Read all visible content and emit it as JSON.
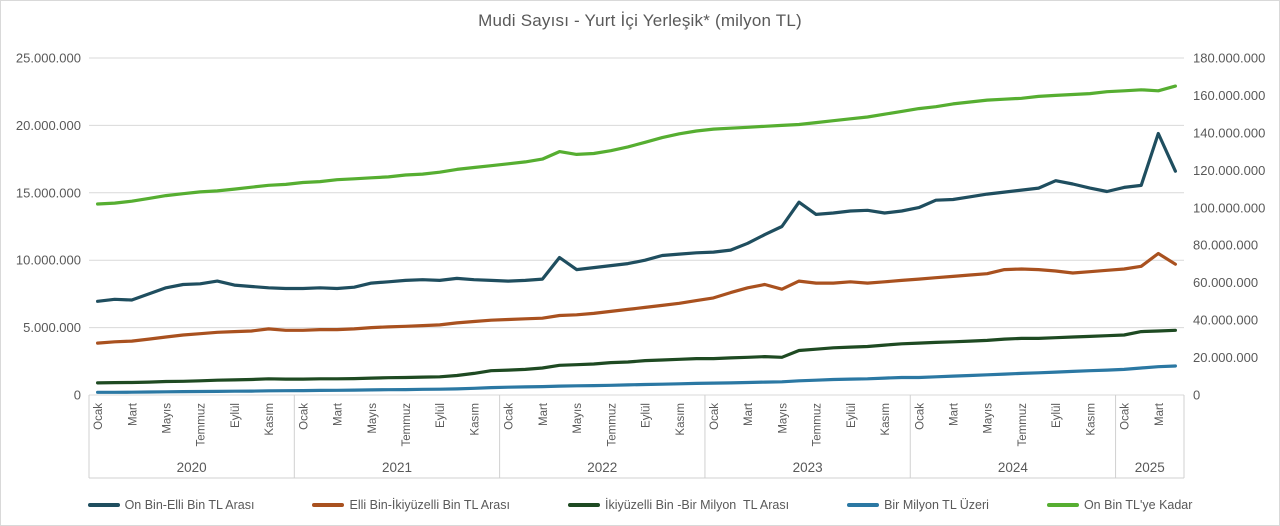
{
  "title": "Mudi Sayısı - Yurt İçi Yerleşik* (milyon TL)",
  "colors": {
    "text": "#595959",
    "gridline": "#d9d9d9",
    "band_line": "#d0d0d0",
    "background": "#ffffff"
  },
  "chart_data": {
    "type": "line",
    "title": "Mudi Sayısı - Yurt İçi Yerleşik* (milyon TL)",
    "grid": "horizontal",
    "legend_position": "bottom",
    "left_axis": {
      "min": 0,
      "max": 25000000,
      "step": 5000000,
      "tick_labels": [
        "0",
        "5.000.000",
        "10.000.000",
        "15.000.000",
        "20.000.000",
        "25.000.000"
      ]
    },
    "right_axis": {
      "min": 0,
      "max": 180000000,
      "step": 20000000,
      "tick_labels": [
        "0",
        "20.000.000",
        "40.000.000",
        "60.000.000",
        "80.000.000",
        "100.000.000",
        "120.000.000",
        "140.000.000",
        "160.000.000",
        "180.000.000"
      ]
    },
    "x_axis": {
      "unit": "month",
      "point_count": 64,
      "month_ticks": [
        [
          0,
          "Ocak"
        ],
        [
          2,
          "Mart"
        ],
        [
          4,
          "Mayıs"
        ],
        [
          6,
          "Temmuz"
        ],
        [
          8,
          "Eylül"
        ],
        [
          10,
          "Kasım"
        ],
        [
          12,
          "Ocak"
        ],
        [
          14,
          "Mart"
        ],
        [
          16,
          "Mayıs"
        ],
        [
          18,
          "Temmuz"
        ],
        [
          20,
          "Eylül"
        ],
        [
          22,
          "Kasım"
        ],
        [
          24,
          "Ocak"
        ],
        [
          26,
          "Mart"
        ],
        [
          28,
          "Mayıs"
        ],
        [
          30,
          "Temmuz"
        ],
        [
          32,
          "Eylül"
        ],
        [
          34,
          "Kasım"
        ],
        [
          36,
          "Ocak"
        ],
        [
          38,
          "Mart"
        ],
        [
          40,
          "Mayıs"
        ],
        [
          42,
          "Temmuz"
        ],
        [
          44,
          "Eylül"
        ],
        [
          46,
          "Kasım"
        ],
        [
          48,
          "Ocak"
        ],
        [
          50,
          "Mart"
        ],
        [
          52,
          "Mayıs"
        ],
        [
          54,
          "Temmuz"
        ],
        [
          56,
          "Eylül"
        ],
        [
          58,
          "Kasım"
        ],
        [
          60,
          "Ocak"
        ],
        [
          62,
          "Mart"
        ]
      ],
      "years": [
        [
          "2020",
          0,
          12
        ],
        [
          "2021",
          12,
          12
        ],
        [
          "2022",
          24,
          12
        ],
        [
          "2023",
          36,
          12
        ],
        [
          "2024",
          48,
          12
        ],
        [
          "2025",
          60,
          4
        ]
      ]
    },
    "series": [
      {
        "name": "On Bin-Elli Bin TL Arası",
        "color": "#1f4e5f",
        "axis": "left",
        "values": [
          6950000,
          7100000,
          7050000,
          7500000,
          7950000,
          8200000,
          8250000,
          8450000,
          8150000,
          8050000,
          7950000,
          7900000,
          7900000,
          7950000,
          7900000,
          8000000,
          8300000,
          8400000,
          8500000,
          8550000,
          8500000,
          8650000,
          8550000,
          8500000,
          8450000,
          8500000,
          8600000,
          10200000,
          9300000,
          9450000,
          9600000,
          9750000,
          10000000,
          10350000,
          10450000,
          10550000,
          10600000,
          10750000,
          11250000,
          11900000,
          12500000,
          14300000,
          13400000,
          13500000,
          13650000,
          13700000,
          13500000,
          13650000,
          13900000,
          14450000,
          14500000,
          14700000,
          14900000,
          15050000,
          15200000,
          15350000,
          15900000,
          15650000,
          15350000,
          15100000,
          15400000,
          15550000,
          19400000,
          16600000
        ]
      },
      {
        "name": "Elli Bin-İkiyüzelli Bin TL Arası",
        "color": "#a9511f",
        "axis": "left",
        "values": [
          3850000,
          3950000,
          4000000,
          4150000,
          4300000,
          4450000,
          4550000,
          4650000,
          4700000,
          4750000,
          4900000,
          4800000,
          4800000,
          4850000,
          4850000,
          4900000,
          5000000,
          5050000,
          5100000,
          5150000,
          5200000,
          5350000,
          5450000,
          5550000,
          5600000,
          5650000,
          5700000,
          5900000,
          5950000,
          6050000,
          6200000,
          6350000,
          6500000,
          6650000,
          6800000,
          7000000,
          7200000,
          7600000,
          7950000,
          8200000,
          7850000,
          8450000,
          8300000,
          8300000,
          8400000,
          8300000,
          8400000,
          8500000,
          8600000,
          8700000,
          8800000,
          8900000,
          9000000,
          9300000,
          9350000,
          9300000,
          9200000,
          9050000,
          9150000,
          9250000,
          9350000,
          9550000,
          10500000,
          9700000
        ]
      },
      {
        "name": "İkiyüzelli Bin -Bir Milyon  TL Arası",
        "color": "#1e4a22",
        "axis": "left",
        "values": [
          900000,
          920000,
          930000,
          960000,
          1000000,
          1020000,
          1050000,
          1100000,
          1120000,
          1150000,
          1200000,
          1180000,
          1180000,
          1200000,
          1200000,
          1220000,
          1250000,
          1280000,
          1300000,
          1330000,
          1350000,
          1450000,
          1600000,
          1800000,
          1850000,
          1900000,
          2000000,
          2200000,
          2250000,
          2300000,
          2400000,
          2450000,
          2550000,
          2600000,
          2650000,
          2700000,
          2700000,
          2750000,
          2800000,
          2850000,
          2800000,
          3300000,
          3400000,
          3500000,
          3550000,
          3600000,
          3700000,
          3800000,
          3850000,
          3900000,
          3950000,
          4000000,
          4050000,
          4150000,
          4200000,
          4200000,
          4250000,
          4300000,
          4350000,
          4400000,
          4450000,
          4700000,
          4750000,
          4800000
        ]
      },
      {
        "name": "Bir Milyon TL Üzeri",
        "color": "#2b78a3",
        "axis": "left",
        "values": [
          200000,
          200000,
          210000,
          220000,
          240000,
          250000,
          260000,
          270000,
          280000,
          290000,
          310000,
          320000,
          330000,
          340000,
          350000,
          360000,
          380000,
          390000,
          400000,
          420000,
          430000,
          450000,
          500000,
          550000,
          580000,
          600000,
          620000,
          660000,
          680000,
          700000,
          720000,
          750000,
          780000,
          800000,
          830000,
          860000,
          880000,
          900000,
          930000,
          960000,
          980000,
          1050000,
          1100000,
          1150000,
          1180000,
          1200000,
          1250000,
          1300000,
          1300000,
          1350000,
          1400000,
          1450000,
          1500000,
          1550000,
          1600000,
          1650000,
          1700000,
          1750000,
          1800000,
          1850000,
          1900000,
          2000000,
          2100000,
          2150000
        ]
      },
      {
        "name": "On Bin TL'ye Kadar",
        "color": "#56ae31",
        "axis": "right",
        "values": [
          102000000,
          102500000,
          103500000,
          105000000,
          106500000,
          107500000,
          108500000,
          109000000,
          110000000,
          111000000,
          112000000,
          112500000,
          113500000,
          114000000,
          115000000,
          115500000,
          116000000,
          116500000,
          117500000,
          118000000,
          119000000,
          120500000,
          121500000,
          122500000,
          123500000,
          124500000,
          126000000,
          130000000,
          128500000,
          129000000,
          130500000,
          132500000,
          135000000,
          137500000,
          139500000,
          141000000,
          142000000,
          142500000,
          143000000,
          143500000,
          144000000,
          144500000,
          145500000,
          146500000,
          147500000,
          148500000,
          150000000,
          151500000,
          153000000,
          154000000,
          155500000,
          156500000,
          157500000,
          158000000,
          158500000,
          159500000,
          160000000,
          160500000,
          161000000,
          162000000,
          162500000,
          163000000,
          162500000,
          165000000
        ]
      }
    ]
  }
}
